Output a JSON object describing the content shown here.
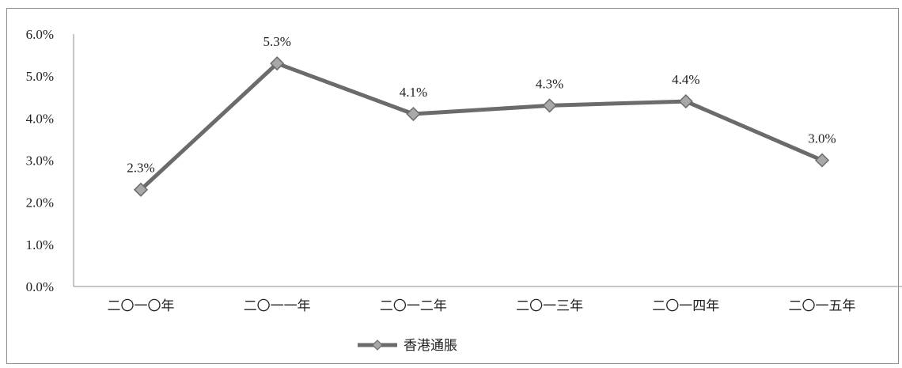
{
  "chart_data": {
    "type": "line",
    "categories": [
      "二〇一〇年",
      "二〇一一年",
      "二〇一二年",
      "二〇一三年",
      "二〇一四年",
      "二〇一五年"
    ],
    "series": [
      {
        "name": "香港通脹",
        "values": [
          2.3,
          5.3,
          4.1,
          4.3,
          4.4,
          3.0
        ],
        "data_labels": [
          "2.3%",
          "5.3%",
          "4.1%",
          "4.3%",
          "4.4%",
          "3.0%"
        ],
        "color": "#6b6b6b",
        "marker_color": "#a8a8a8"
      }
    ],
    "y_ticks": [
      "0.0%",
      "1.0%",
      "2.0%",
      "3.0%",
      "4.0%",
      "5.0%",
      "6.0%"
    ],
    "ylim": [
      0,
      6
    ],
    "grid": false,
    "legend_position": "bottom"
  }
}
